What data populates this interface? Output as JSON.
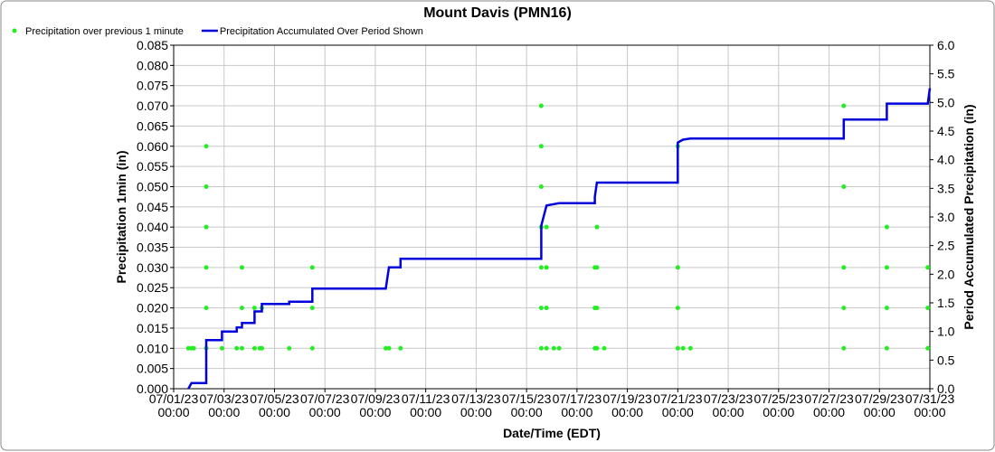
{
  "chart_data": {
    "type": "scatter_line",
    "title": "Mount Davis (PMN16)",
    "xlabel": "Date/Time (EDT)",
    "ylabel": "Precipitation 1min (in)",
    "y2label": "Period Accumulated Precipitation (in)",
    "grid": true,
    "legend": "top-left",
    "xlim": [
      "2023-07-01T00:00",
      "2023-07-31T00:00"
    ],
    "xticks": [
      {
        "value": "2023-07-01T00:00",
        "label": [
          "07/01/23",
          "00:00"
        ]
      },
      {
        "value": "2023-07-03T00:00",
        "label": [
          "07/03/23",
          "00:00"
        ]
      },
      {
        "value": "2023-07-05T00:00",
        "label": [
          "07/05/23",
          "00:00"
        ]
      },
      {
        "value": "2023-07-07T00:00",
        "label": [
          "07/07/23",
          "00:00"
        ]
      },
      {
        "value": "2023-07-09T00:00",
        "label": [
          "07/09/23",
          "00:00"
        ]
      },
      {
        "value": "2023-07-11T00:00",
        "label": [
          "07/11/23",
          "00:00"
        ]
      },
      {
        "value": "2023-07-13T00:00",
        "label": [
          "07/13/23",
          "00:00"
        ]
      },
      {
        "value": "2023-07-15T00:00",
        "label": [
          "07/15/23",
          "00:00"
        ]
      },
      {
        "value": "2023-07-17T00:00",
        "label": [
          "07/17/23",
          "00:00"
        ]
      },
      {
        "value": "2023-07-19T00:00",
        "label": [
          "07/19/23",
          "00:00"
        ]
      },
      {
        "value": "2023-07-21T00:00",
        "label": [
          "07/21/23",
          "00:00"
        ]
      },
      {
        "value": "2023-07-23T00:00",
        "label": [
          "07/23/23",
          "00:00"
        ]
      },
      {
        "value": "2023-07-25T00:00",
        "label": [
          "07/25/23",
          "00:00"
        ]
      },
      {
        "value": "2023-07-27T00:00",
        "label": [
          "07/27/23",
          "00:00"
        ]
      },
      {
        "value": "2023-07-29T00:00",
        "label": [
          "07/29/23",
          "00:00"
        ]
      },
      {
        "value": "2023-07-31T00:00",
        "label": [
          "07/31/23",
          "00:00"
        ]
      }
    ],
    "ylim": [
      0,
      0.085
    ],
    "yticks": [
      {
        "value": 0,
        "label": "0.000"
      },
      0.005,
      {
        "value": 0.01,
        "label": "0.010"
      },
      0.015,
      {
        "value": 0.02,
        "label": "0.020"
      },
      0.025,
      {
        "value": 0.03,
        "label": "0.030"
      },
      0.035,
      {
        "value": 0.04,
        "label": "0.040"
      },
      0.045,
      {
        "value": 0.05,
        "label": "0.050"
      },
      0.055,
      {
        "value": 0.06,
        "label": "0.060"
      },
      0.065,
      {
        "value": 0.07,
        "label": "0.070"
      },
      0.075,
      {
        "value": 0.08,
        "label": "0.080"
      },
      0.085
    ],
    "y2lim": [
      0,
      6
    ],
    "y2ticks": [
      {
        "value": 0,
        "label": "0.0"
      },
      0.5,
      {
        "value": 1,
        "label": "1.0"
      },
      1.5,
      {
        "value": 2,
        "label": "2.0"
      },
      2.5,
      {
        "value": 3,
        "label": "3.0"
      },
      3.5,
      {
        "value": 4,
        "label": "4.0"
      },
      4.5,
      {
        "value": 5,
        "label": "5.0"
      },
      5.5,
      {
        "value": 6,
        "label": "6.0"
      }
    ],
    "series": [
      {
        "name": "Precipitation over previous 1 minute",
        "color": "#22ee22",
        "kind": "points",
        "x": [
          "2023-07-01T14:00",
          "2023-07-01T17:00",
          "2023-07-01T19:00",
          "2023-07-02T07:00",
          "2023-07-02T07:00",
          "2023-07-02T07:00",
          "2023-07-02T07:00",
          "2023-07-02T07:00",
          "2023-07-02T07:00",
          "2023-07-02T22:00",
          "2023-07-03T12:00",
          "2023-07-03T17:00",
          "2023-07-03T17:00",
          "2023-07-03T17:00",
          "2023-07-04T05:00",
          "2023-07-04T05:00",
          "2023-07-04T10:00",
          "2023-07-04T12:00",
          "2023-07-04T12:00",
          "2023-07-05T14:00",
          "2023-07-06T12:00",
          "2023-07-06T12:00",
          "2023-07-06T12:00",
          "2023-07-09T10:00",
          "2023-07-09T13:00",
          "2023-07-10T00:00",
          "2023-07-15T14:00",
          "2023-07-15T14:00",
          "2023-07-15T14:00",
          "2023-07-15T14:00",
          "2023-07-15T14:00",
          "2023-07-15T14:00",
          "2023-07-15T14:00",
          "2023-07-15T19:00",
          "2023-07-15T19:00",
          "2023-07-15T19:00",
          "2023-07-15T19:00",
          "2023-07-16T02:00",
          "2023-07-16T07:00",
          "2023-07-17T17:00",
          "2023-07-17T17:00",
          "2023-07-17T17:00",
          "2023-07-17T19:00",
          "2023-07-17T19:00",
          "2023-07-17T19:00",
          "2023-07-17T19:00",
          "2023-07-18T02:00",
          "2023-07-21T00:00",
          "2023-07-21T00:00",
          "2023-07-21T00:00",
          "2023-07-21T00:00",
          "2023-07-21T05:00",
          "2023-07-21T12:00",
          "2023-07-27T14:00",
          "2023-07-27T14:00",
          "2023-07-27T14:00",
          "2023-07-27T14:00",
          "2023-07-27T14:00",
          "2023-07-29T07:00",
          "2023-07-29T07:00",
          "2023-07-29T07:00",
          "2023-07-29T07:00",
          "2023-07-30T22:00",
          "2023-07-30T22:00",
          "2023-07-30T22:00"
        ],
        "values": [
          0.01,
          0.01,
          0.01,
          0.01,
          0.02,
          0.03,
          0.04,
          0.05,
          0.06,
          0.01,
          0.01,
          0.01,
          0.02,
          0.03,
          0.01,
          0.02,
          0.01,
          0.01,
          0.02,
          0.01,
          0.01,
          0.02,
          0.03,
          0.01,
          0.01,
          0.01,
          0.01,
          0.02,
          0.03,
          0.04,
          0.05,
          0.06,
          0.07,
          0.01,
          0.02,
          0.03,
          0.04,
          0.01,
          0.01,
          0.01,
          0.02,
          0.03,
          0.01,
          0.02,
          0.03,
          0.04,
          0.01,
          0.01,
          0.02,
          0.03,
          0.06,
          0.01,
          0.01,
          0.01,
          0.02,
          0.03,
          0.05,
          0.07,
          0.01,
          0.02,
          0.03,
          0.04,
          0.01,
          0.02,
          0.03
        ]
      },
      {
        "name": "Precipitation Accumulated Over Period Shown",
        "color": "#0000dd",
        "kind": "line",
        "axis": "y2",
        "x": [
          "2023-07-01T14:00",
          "2023-07-01T17:00",
          "2023-07-02T07:00",
          "2023-07-02T07:00",
          "2023-07-02T22:00",
          "2023-07-02T22:00",
          "2023-07-03T12:00",
          "2023-07-03T12:00",
          "2023-07-03T17:00",
          "2023-07-03T17:00",
          "2023-07-04T05:00",
          "2023-07-04T05:00",
          "2023-07-04T12:00",
          "2023-07-04T12:00",
          "2023-07-05T14:00",
          "2023-07-05T14:00",
          "2023-07-06T12:00",
          "2023-07-06T12:00",
          "2023-07-09T10:00",
          "2023-07-09T13:00",
          "2023-07-10T00:00",
          "2023-07-10T00:00",
          "2023-07-15T14:00",
          "2023-07-15T14:00",
          "2023-07-15T19:00",
          "2023-07-16T07:00",
          "2023-07-17T17:00",
          "2023-07-17T17:00",
          "2023-07-17T19:00",
          "2023-07-21T00:00",
          "2023-07-21T00:00",
          "2023-07-21T05:00",
          "2023-07-21T12:00",
          "2023-07-27T14:00",
          "2023-07-27T14:00",
          "2023-07-29T07:00",
          "2023-07-29T07:00",
          "2023-07-30T22:00",
          "2023-07-31T00:00"
        ],
        "values": [
          0,
          0.1,
          0.1,
          0.85,
          0.85,
          1.0,
          1.0,
          1.07,
          1.07,
          1.15,
          1.15,
          1.35,
          1.35,
          1.48,
          1.48,
          1.52,
          1.52,
          1.75,
          1.75,
          2.12,
          2.12,
          2.27,
          2.27,
          2.85,
          3.2,
          3.24,
          3.24,
          3.35,
          3.6,
          3.6,
          4.3,
          4.35,
          4.37,
          4.37,
          4.7,
          4.7,
          4.98,
          4.98,
          5.25
        ]
      }
    ]
  }
}
